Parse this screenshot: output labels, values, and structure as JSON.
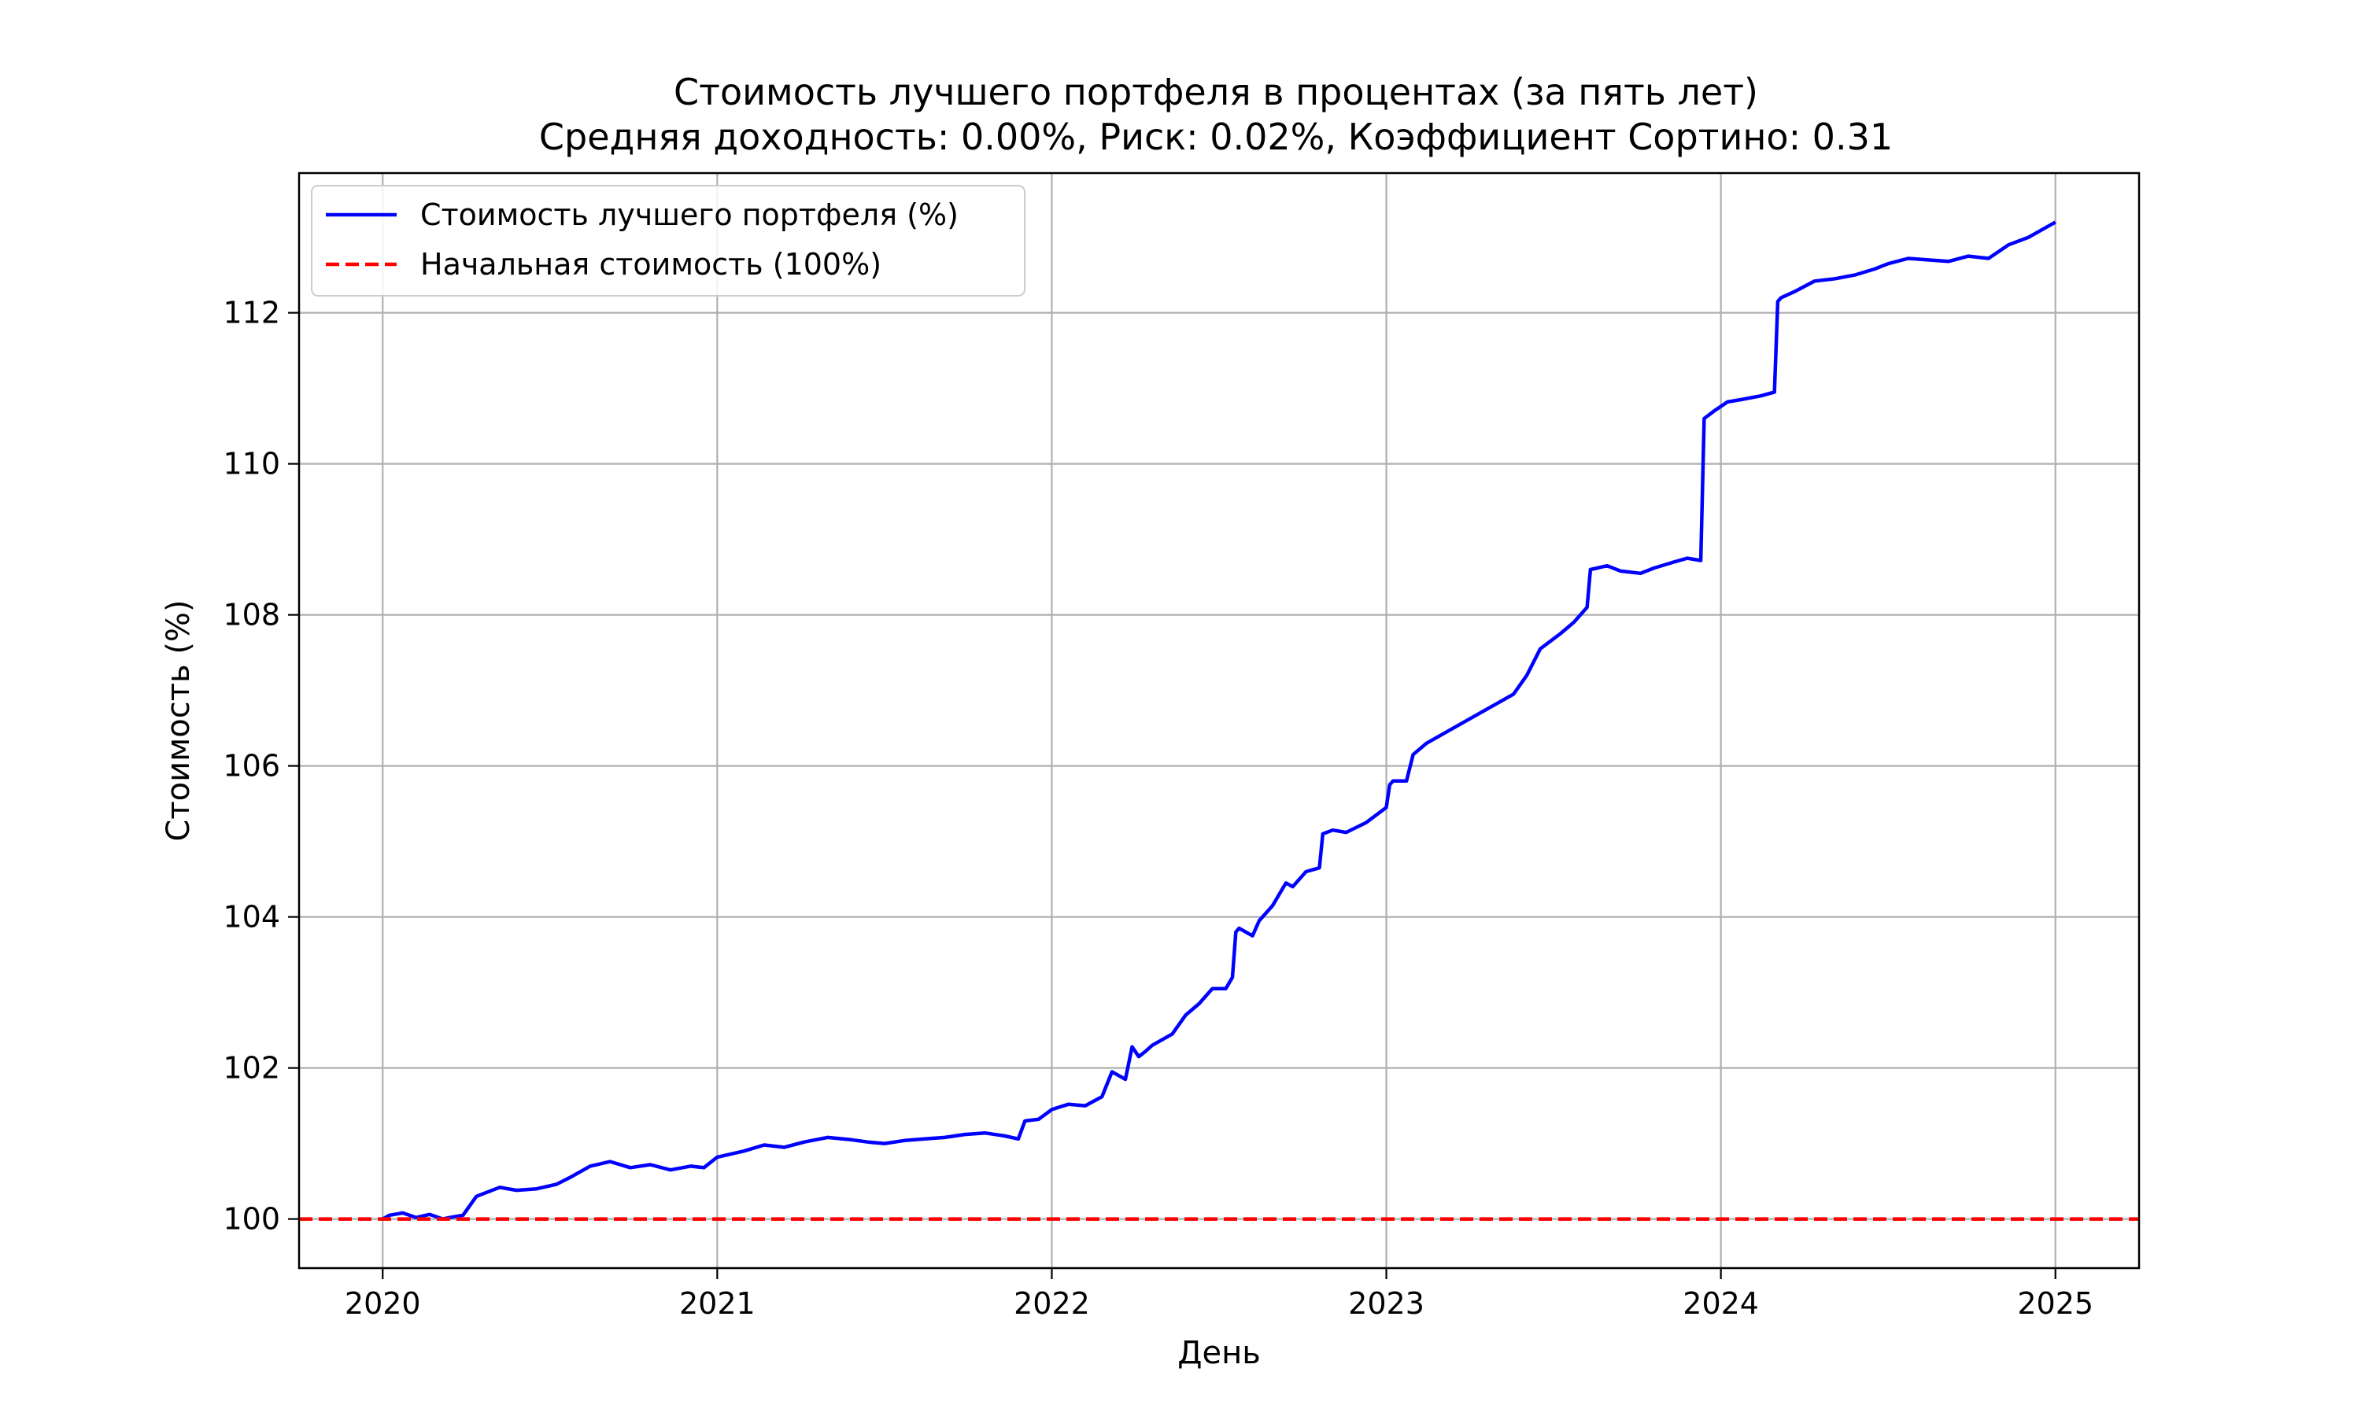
{
  "chart_data": {
    "type": "line",
    "title": "Стоимость лучшего портфеля в процентах (за пять лет)",
    "subtitle": "Средняя доходность: 0.00%, Риск: 0.02%, Коэффициент Сортино: 0.31",
    "xlabel": "День",
    "ylabel": "Стоимость (%)",
    "xlim": [
      2019.75,
      2025.25
    ],
    "ylim": [
      99.35,
      113.85
    ],
    "x_ticks": [
      2020,
      2021,
      2022,
      2023,
      2024,
      2025
    ],
    "x_tick_labels": [
      "2020",
      "2021",
      "2022",
      "2023",
      "2024",
      "2025"
    ],
    "y_ticks": [
      100,
      102,
      104,
      106,
      108,
      110,
      112
    ],
    "y_tick_labels": [
      "100",
      "102",
      "104",
      "106",
      "108",
      "110",
      "112"
    ],
    "grid": true,
    "legend_position": "upper-left",
    "series": [
      {
        "name": "Стоимость лучшего портфеля (%)",
        "color": "#0000ff",
        "style": "solid",
        "x": [
          2020.0,
          2020.02,
          2020.06,
          2020.1,
          2020.14,
          2020.18,
          2020.2,
          2020.24,
          2020.28,
          2020.35,
          2020.4,
          2020.46,
          2020.52,
          2020.56,
          2020.62,
          2020.68,
          2020.74,
          2020.8,
          2020.86,
          2020.92,
          2020.96,
          2021.0,
          2021.08,
          2021.14,
          2021.2,
          2021.26,
          2021.33,
          2021.4,
          2021.45,
          2021.5,
          2021.56,
          2021.62,
          2021.68,
          2021.74,
          2021.8,
          2021.86,
          2021.9,
          2021.92,
          2021.96,
          2022.0,
          2022.05,
          2022.1,
          2022.15,
          2022.18,
          2022.22,
          2022.24,
          2022.26,
          2022.28,
          2022.3,
          2022.36,
          2022.4,
          2022.44,
          2022.48,
          2022.52,
          2022.54,
          2022.55,
          2022.56,
          2022.6,
          2022.62,
          2022.66,
          2022.7,
          2022.72,
          2022.76,
          2022.8,
          2022.81,
          2022.84,
          2022.88,
          2022.94,
          2023.0,
          2023.01,
          2023.02,
          2023.06,
          2023.08,
          2023.12,
          2023.16,
          2023.2,
          2023.26,
          2023.32,
          2023.38,
          2023.42,
          2023.46,
          2023.52,
          2023.56,
          2023.6,
          2023.61,
          2023.66,
          2023.7,
          2023.76,
          2023.8,
          2023.86,
          2023.9,
          2023.94,
          2023.95,
          2023.98,
          2024.02,
          2024.06,
          2024.12,
          2024.16,
          2024.17,
          2024.18,
          2024.22,
          2024.28,
          2024.34,
          2024.4,
          2024.46,
          2024.5,
          2024.56,
          2024.62,
          2024.68,
          2024.74,
          2024.8,
          2024.86,
          2024.92,
          2024.98,
          2025.0
        ],
        "y": [
          100.0,
          100.05,
          100.08,
          100.02,
          100.06,
          100.0,
          100.02,
          100.05,
          100.3,
          100.42,
          100.38,
          100.4,
          100.46,
          100.55,
          100.7,
          100.76,
          100.68,
          100.72,
          100.65,
          100.7,
          100.68,
          100.82,
          100.9,
          100.98,
          100.95,
          101.02,
          101.08,
          101.05,
          101.02,
          101.0,
          101.04,
          101.06,
          101.08,
          101.12,
          101.14,
          101.1,
          101.06,
          101.3,
          101.32,
          101.45,
          101.52,
          101.5,
          101.62,
          101.95,
          101.85,
          102.28,
          102.15,
          102.22,
          102.3,
          102.45,
          102.7,
          102.85,
          103.05,
          103.05,
          103.2,
          103.8,
          103.85,
          103.75,
          103.95,
          104.15,
          104.45,
          104.4,
          104.6,
          104.65,
          105.1,
          105.15,
          105.12,
          105.25,
          105.45,
          105.75,
          105.8,
          105.8,
          106.15,
          106.3,
          106.4,
          106.5,
          106.65,
          106.8,
          106.95,
          107.2,
          107.55,
          107.75,
          107.9,
          108.1,
          108.6,
          108.65,
          108.58,
          108.55,
          108.62,
          108.7,
          108.75,
          108.72,
          110.6,
          110.7,
          110.82,
          110.85,
          110.9,
          110.95,
          112.15,
          112.2,
          112.28,
          112.42,
          112.45,
          112.5,
          112.58,
          112.65,
          112.72,
          112.7,
          112.68,
          112.75,
          112.72,
          112.9,
          113.0,
          113.15,
          113.2
        ]
      },
      {
        "name": "Начальная стоимость (100%)",
        "color": "#ff0000",
        "style": "dashed",
        "x": [
          2019.75,
          2025.25
        ],
        "y": [
          100,
          100
        ]
      }
    ]
  }
}
